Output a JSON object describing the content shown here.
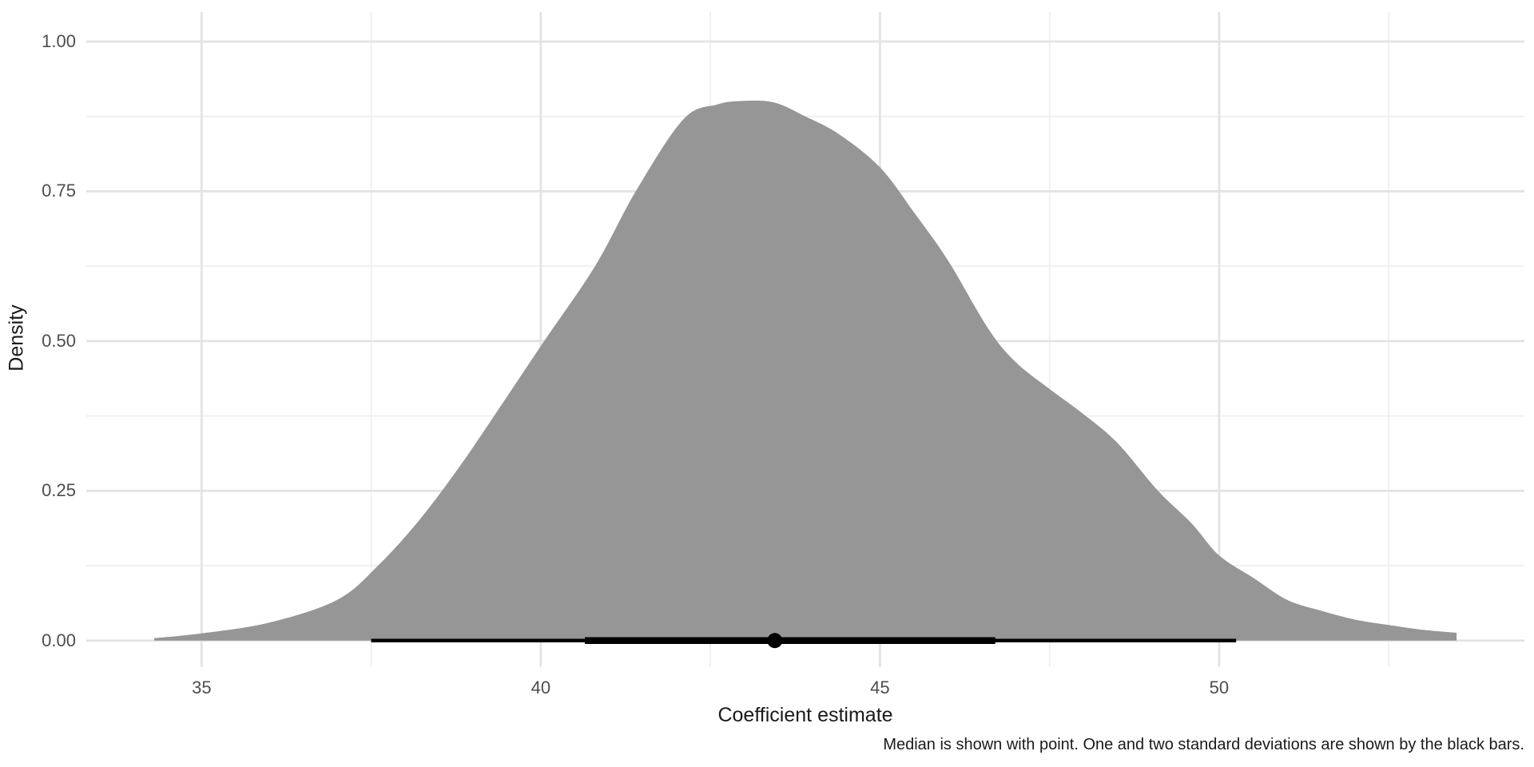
{
  "chart_data": {
    "type": "area",
    "subtype": "density-with-pointrange",
    "title": "",
    "xlabel": "Coefficient estimate",
    "ylabel": "Density",
    "caption": "Median is shown with point. One and two standard deviations are shown by the black bars.",
    "x_domain": [
      33.3,
      54.5
    ],
    "y_domain": [
      -0.0443,
      1.0493
    ],
    "x_ticks_major": [
      35,
      40,
      45,
      50
    ],
    "x_tick_labels": [
      "35",
      "40",
      "45",
      "50"
    ],
    "x_ticks_minor": [
      37.5,
      42.5,
      47.5,
      52.5
    ],
    "y_ticks_major": [
      0,
      0.25,
      0.5,
      0.75,
      1.0
    ],
    "y_tick_labels": [
      "0.00",
      "0.25",
      "0.50",
      "0.75",
      "1.00"
    ],
    "y_ticks_minor": [
      0.125,
      0.375,
      0.625,
      0.875
    ],
    "grid": true,
    "legend_position": "none",
    "density": {
      "x": [
        34.3,
        35,
        36,
        37,
        37.6,
        38.2,
        38.8,
        39.4,
        40.05,
        40.8,
        41.4,
        42.1,
        42.6,
        43,
        43.45,
        43.9,
        44.4,
        45,
        45.5,
        46,
        46.6,
        47,
        47.5,
        48,
        48.5,
        49.1,
        49.6,
        50,
        50.5,
        51,
        51.5,
        52,
        52.5,
        53,
        53.5
      ],
      "y": [
        0.004,
        0.012,
        0.03,
        0.068,
        0.125,
        0.2,
        0.29,
        0.39,
        0.5,
        0.625,
        0.75,
        0.87,
        0.895,
        0.901,
        0.898,
        0.875,
        0.845,
        0.79,
        0.715,
        0.635,
        0.52,
        0.465,
        0.42,
        0.378,
        0.33,
        0.25,
        0.195,
        0.142,
        0.105,
        0.068,
        0.05,
        0.035,
        0.026,
        0.018,
        0.013
      ],
      "peak": {
        "x": 43.0,
        "y": 0.9
      }
    },
    "pointrange": {
      "median": 43.45,
      "one_sd_interval": [
        40.65,
        46.7
      ],
      "two_sd_interval": [
        37.5,
        50.25
      ],
      "y": 0
    },
    "colors": {
      "density_fill": "#969696",
      "grid_major": "#E3E3E3",
      "grid_minor": "#EFEFEF",
      "pointrange": "#000000",
      "tick_text": "#4D4D4D",
      "title_text": "#1A1A1A",
      "background": "#FFFFFF"
    }
  }
}
